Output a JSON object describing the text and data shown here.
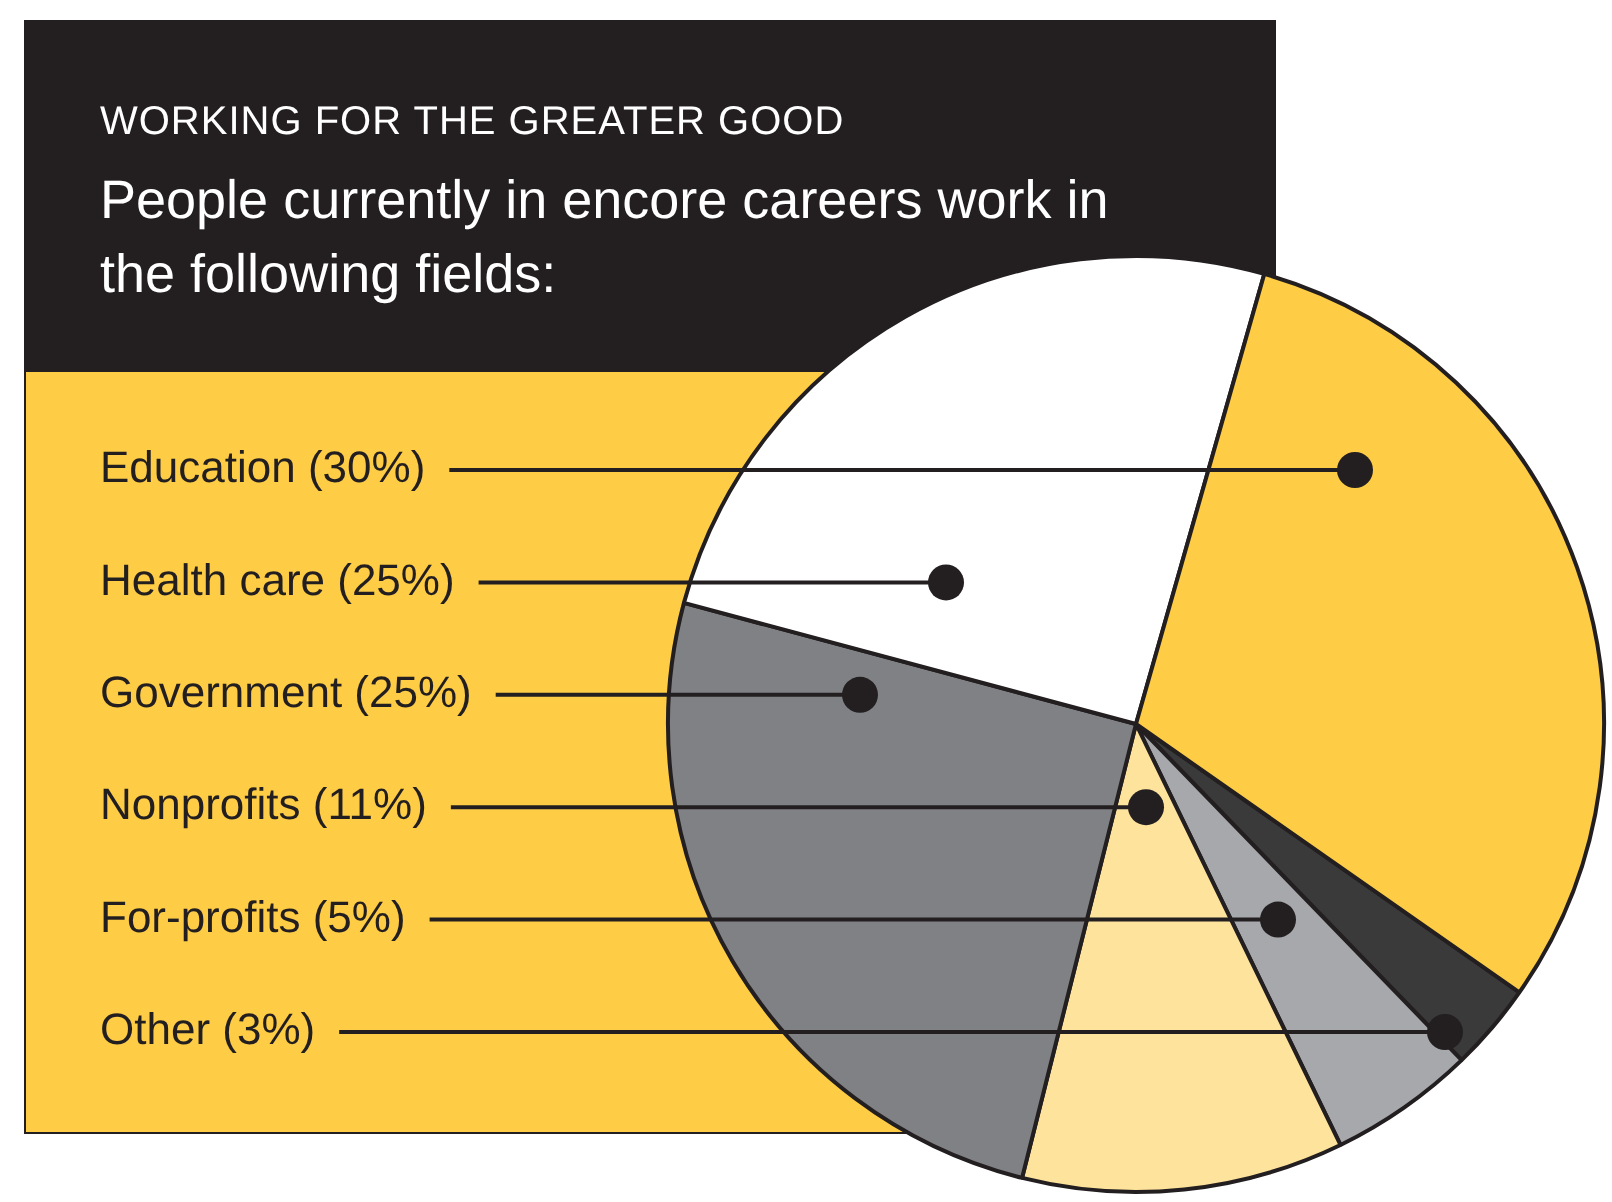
{
  "chart_data": {
    "type": "pie",
    "title": "WORKING FOR THE GREATER GOOD",
    "subtitle": "People currently in encore careers work in the following fields:",
    "categories": [
      "Education (30%)",
      "Health care (25%)",
      "Government (25%)",
      "Nonprofits (11%)",
      "For-profits (5%)",
      "Other (3%)"
    ],
    "values": [
      30,
      25,
      25,
      11,
      5,
      3
    ],
    "colors": [
      "#fecd45",
      "#ffffff",
      "#808184",
      "#fde39c",
      "#a7a8ab",
      "#3a3a3a"
    ],
    "legend": false
  }
}
